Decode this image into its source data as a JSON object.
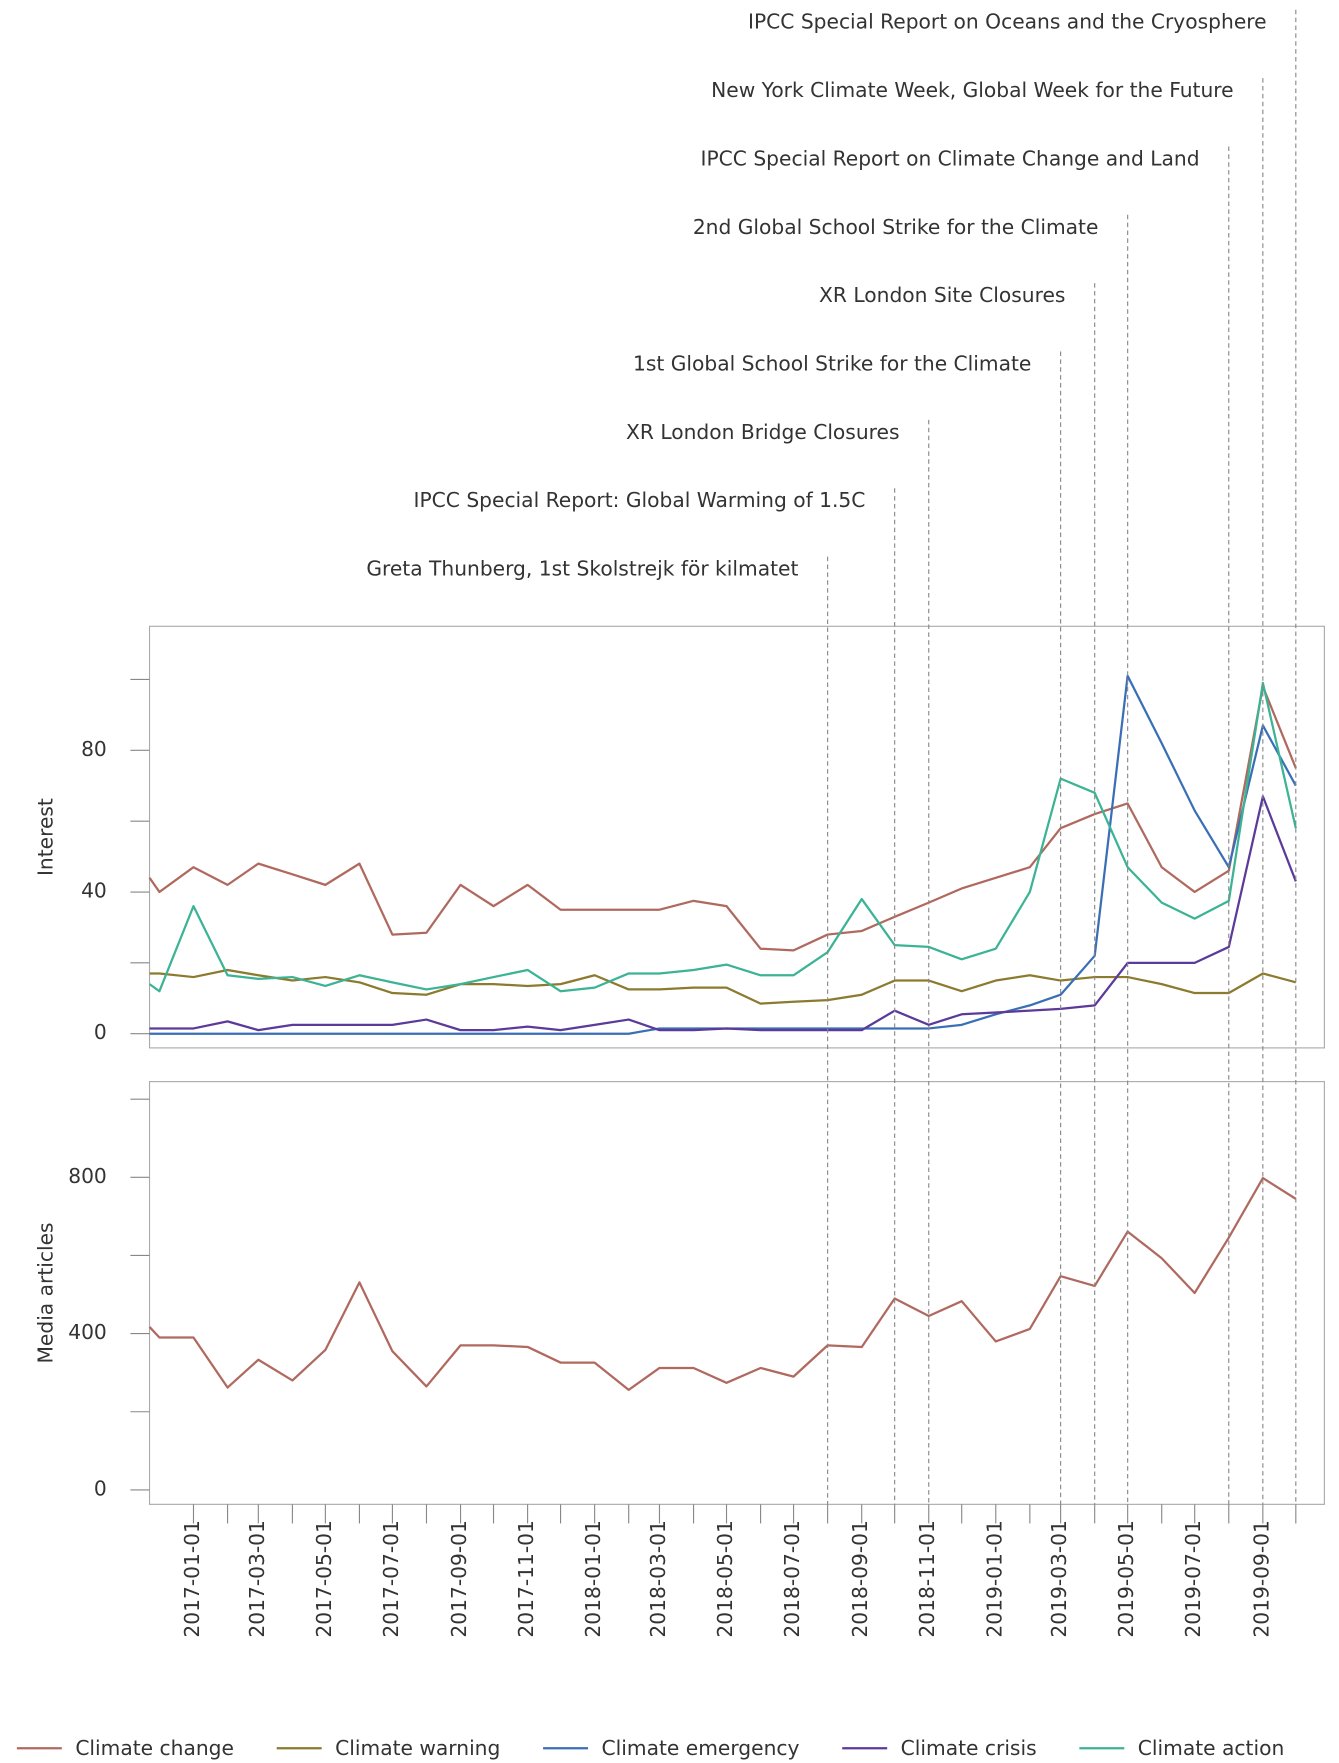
{
  "chart_data": {
    "type": "line",
    "x": [
      "2016-11-22",
      "2016-12-01",
      "2017-01-01",
      "2017-02-01",
      "2017-03-01",
      "2017-04-01",
      "2017-05-01",
      "2017-06-01",
      "2017-07-01",
      "2017-08-01",
      "2017-09-01",
      "2017-10-01",
      "2017-11-01",
      "2017-12-01",
      "2018-01-01",
      "2018-02-01",
      "2018-03-01",
      "2018-04-01",
      "2018-05-01",
      "2018-06-01",
      "2018-07-01",
      "2018-08-01",
      "2018-09-01",
      "2018-10-01",
      "2018-11-01",
      "2018-12-01",
      "2019-01-01",
      "2019-02-01",
      "2019-03-01",
      "2019-04-01",
      "2019-05-01",
      "2019-06-01",
      "2019-07-01",
      "2019-08-01",
      "2019-09-01",
      "2019-10-01"
    ],
    "xlim": [
      "2016-11-22",
      "2019-10-27"
    ],
    "xticks": [
      "2017-01-01",
      "2017-03-01",
      "2017-05-01",
      "2017-07-01",
      "2017-09-01",
      "2017-11-01",
      "2018-01-01",
      "2018-03-01",
      "2018-05-01",
      "2018-07-01",
      "2018-09-01",
      "2018-11-01",
      "2019-01-01",
      "2019-03-01",
      "2019-05-01",
      "2019-07-01",
      "2019-09-01"
    ],
    "minor_xticks": [
      "2017-02-01",
      "2017-04-01",
      "2017-06-01",
      "2017-08-01",
      "2017-10-01",
      "2017-12-01",
      "2018-02-01",
      "2018-04-01",
      "2018-06-01",
      "2018-08-01",
      "2018-10-01",
      "2018-12-01",
      "2019-02-01",
      "2019-04-01",
      "2019-06-01",
      "2019-08-01",
      "2019-10-01"
    ],
    "events": [
      {
        "label": "Greta Thunberg, 1st Skolstrejk för kilmatet",
        "date": "2018-08-01"
      },
      {
        "label": "IPCC Special Report: Global Warming of 1.5C",
        "date": "2018-10-01"
      },
      {
        "label": "XR London Bridge Closures",
        "date": "2018-11-01"
      },
      {
        "label": "1st Global School Strike for the Climate",
        "date": "2019-03-01"
      },
      {
        "label": "XR London Site Closures",
        "date": "2019-04-01"
      },
      {
        "label": "2nd Global School Strike for the Climate",
        "date": "2019-05-01"
      },
      {
        "label": "IPCC Special Report on Climate Change and Land",
        "date": "2019-08-01"
      },
      {
        "label": "New York Climate Week, Global Week for the Future",
        "date": "2019-09-01"
      },
      {
        "label": "IPCC Special Report on Oceans and the Cryosphere",
        "date": "2019-10-01"
      }
    ],
    "panels": [
      {
        "ylabel": "Interest",
        "ylim": [
          -4,
          115
        ],
        "yticks": [
          0,
          40,
          80
        ],
        "minor_yticks": [
          20,
          60,
          100
        ],
        "series": [
          {
            "name": "Climate change",
            "color": "#b0695f",
            "values": [
              44,
              40,
              47,
              42,
              48,
              45,
              42,
              48,
              28,
              28.5,
              42,
              36,
              42,
              35,
              35,
              35,
              35,
              37.5,
              36,
              24,
              23.5,
              28,
              29,
              33,
              37,
              41,
              44,
              47,
              58,
              62,
              65,
              47,
              40,
              46,
              98,
              75
            ]
          },
          {
            "name": "Climate warning",
            "color": "#8c7a2e",
            "values": [
              17,
              17,
              16,
              18,
              16.5,
              15,
              16,
              14.5,
              11.5,
              11,
              14,
              14,
              13.5,
              14,
              16.5,
              12.5,
              12.5,
              13,
              13,
              8.5,
              9,
              9.5,
              11,
              15,
              15,
              12,
              15,
              16.5,
              15,
              16,
              16,
              14,
              11.5,
              11.5,
              17,
              14.5
            ]
          },
          {
            "name": "Climate emergency",
            "color": "#3a6fb5",
            "values": [
              0,
              0,
              0,
              0,
              0,
              0,
              0,
              0,
              0,
              0,
              0,
              0,
              0,
              0,
              0,
              0,
              1.5,
              1.5,
              1.5,
              1.5,
              1.5,
              1.5,
              1.5,
              1.5,
              1.5,
              2.5,
              5.5,
              8,
              11,
              22,
              101,
              82,
              63,
              47,
              87,
              70
            ]
          },
          {
            "name": "Climate crisis",
            "color": "#5b3a99",
            "values": [
              1.5,
              1.5,
              1.5,
              3.5,
              1,
              2.5,
              2.5,
              2.5,
              2.5,
              4,
              1,
              1,
              2,
              1,
              2.5,
              4,
              1,
              1,
              1.5,
              1,
              1,
              1,
              1,
              6.5,
              2.5,
              5.5,
              6,
              6.5,
              7,
              8,
              20,
              20,
              20,
              24.5,
              67,
              43
            ]
          },
          {
            "name": "Climate action",
            "color": "#3bb394",
            "values": [
              14,
              12,
              36,
              16.5,
              15.5,
              16,
              13.5,
              16.5,
              14.5,
              12.5,
              14,
              16,
              18,
              12,
              13,
              17,
              17,
              18,
              19.5,
              16.5,
              16.5,
              23,
              38,
              25,
              24.5,
              21,
              24,
              40,
              72,
              68,
              47,
              37,
              32.5,
              37.5,
              99,
              58
            ]
          }
        ]
      },
      {
        "ylabel": "Media articles",
        "ylim": [
          -37,
          1045
        ],
        "yticks": [
          0,
          400,
          800
        ],
        "minor_yticks": [
          200,
          600,
          1000
        ],
        "series": [
          {
            "color": "#b0695f",
            "values": [
              417,
              390,
              390,
              262,
              333,
              280,
              358,
              531,
              355,
              265,
              370,
              370,
              366,
              326,
              326,
              256,
              312,
              312,
              274,
              312,
              290,
              370,
              366,
              490,
              445,
              483,
              380,
              412,
              547,
              522,
              661,
              593,
              504,
              646,
              798,
              745
            ]
          }
        ]
      }
    ]
  }
}
